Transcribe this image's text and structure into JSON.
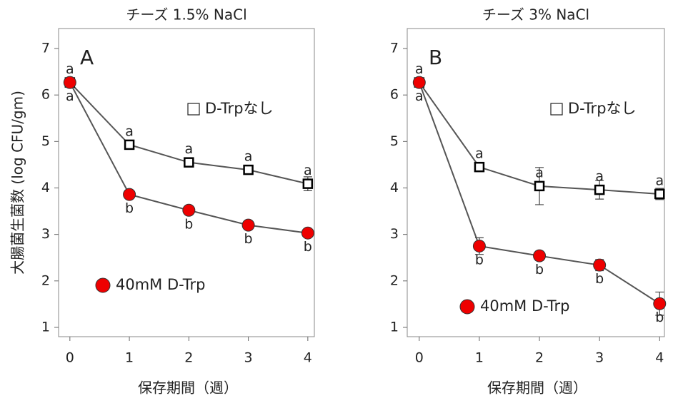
{
  "chart_data": [
    {
      "type": "line",
      "title": "チーズ  1.5% NaCl",
      "panel_label": "A",
      "y_label": "大腸菌生菌数 (log CFU/gm)",
      "x_label": "保存期間（週）",
      "x": [
        0,
        1,
        2,
        3,
        4
      ],
      "xlim": [
        -0.19,
        4.11
      ],
      "xticks": [
        0,
        1,
        2,
        3,
        4
      ],
      "ylim": [
        0.8,
        7.43
      ],
      "yticks": [
        1,
        2,
        3,
        4,
        5,
        6,
        7
      ],
      "series": [
        {
          "name": "D-Trpなし",
          "marker": "square",
          "color": "#000000",
          "values": [
            6.27,
            4.93,
            4.55,
            4.39,
            4.09
          ],
          "errors": [
            0.05,
            0.05,
            0.07,
            0.07,
            0.15
          ],
          "point_labels": [
            "a",
            "a",
            "a",
            "a",
            "a"
          ]
        },
        {
          "name": "40mM D-Trp",
          "marker": "circle",
          "color": "#ee0000",
          "values": [
            6.27,
            3.86,
            3.52,
            3.2,
            3.03
          ],
          "errors": [
            0.05,
            0.05,
            0.07,
            0.05,
            0.05
          ],
          "point_labels": [
            "a",
            "b",
            "b",
            "b",
            "b"
          ]
        }
      ]
    },
    {
      "type": "line",
      "title": "チーズ  3% NaCl",
      "panel_label": "B",
      "x_label": "保存期間（週）",
      "x": [
        0,
        1,
        2,
        3,
        4
      ],
      "xlim": [
        -0.2,
        4.08
      ],
      "xticks": [
        0,
        1,
        2,
        3,
        4
      ],
      "ylim": [
        0.8,
        7.43
      ],
      "yticks": [
        1,
        2,
        3,
        4,
        5,
        6,
        7
      ],
      "series": [
        {
          "name": "D-Trpなし",
          "marker": "square",
          "color": "#000000",
          "values": [
            6.27,
            4.45,
            4.04,
            3.96,
            3.87
          ],
          "errors": [
            0.05,
            0.06,
            0.4,
            0.2,
            0.12
          ],
          "point_labels": [
            "a",
            "a",
            "a",
            "a",
            "a"
          ]
        },
        {
          "name": "40mM D-Trp",
          "marker": "circle",
          "color": "#ee0000",
          "values": [
            6.27,
            2.75,
            2.54,
            2.34,
            1.51
          ],
          "errors": [
            0.05,
            0.18,
            0.1,
            0.12,
            0.25
          ],
          "point_labels": [
            "a",
            "b",
            "b",
            "b",
            "b"
          ]
        }
      ]
    }
  ]
}
